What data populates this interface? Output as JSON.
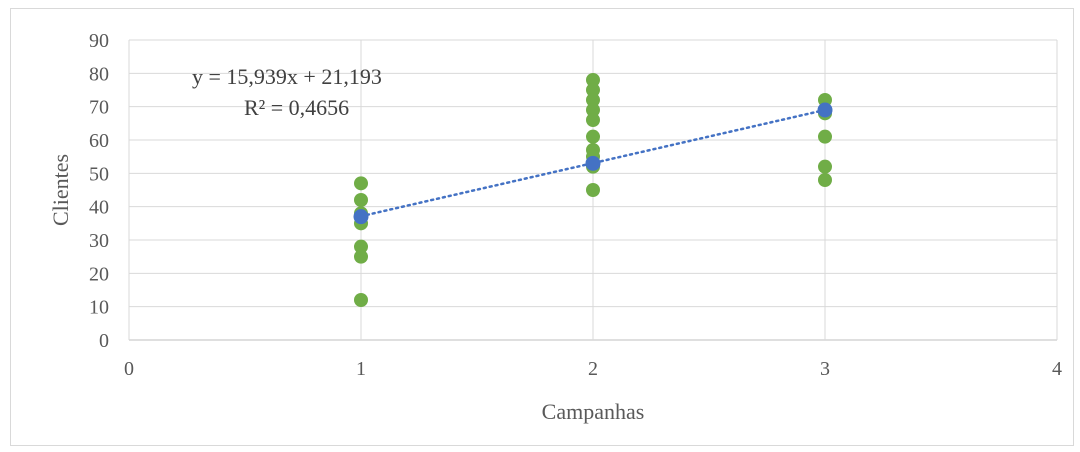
{
  "chart_data": {
    "type": "scatter",
    "xlabel": "Campanhas",
    "ylabel": "Clientes",
    "xlim": [
      0,
      4
    ],
    "ylim": [
      0,
      90
    ],
    "x_ticks": [
      "0",
      "1",
      "2",
      "3",
      "4"
    ],
    "y_ticks": [
      "0",
      "10",
      "20",
      "30",
      "40",
      "50",
      "60",
      "70",
      "80",
      "90"
    ],
    "grid": true,
    "series": [
      {
        "color": "#70ad47",
        "points": [
          [
            1,
            47
          ],
          [
            1,
            42
          ],
          [
            1,
            38
          ],
          [
            1,
            35
          ],
          [
            1,
            28
          ],
          [
            1,
            25
          ],
          [
            1,
            12
          ],
          [
            2,
            78
          ],
          [
            2,
            75
          ],
          [
            2,
            72
          ],
          [
            2,
            69
          ],
          [
            2,
            66
          ],
          [
            2,
            61
          ],
          [
            2,
            57
          ],
          [
            2,
            55
          ],
          [
            2,
            52
          ],
          [
            2,
            45
          ],
          [
            3,
            72
          ],
          [
            3,
            68
          ],
          [
            3,
            61
          ],
          [
            3,
            52
          ],
          [
            3,
            48
          ]
        ]
      },
      {
        "color": "#4472c4",
        "points": [
          [
            1,
            37
          ],
          [
            2,
            53
          ],
          [
            3,
            69
          ]
        ]
      }
    ],
    "trendline": {
      "color": "#4472c4",
      "slope": 15.939,
      "intercept": 21.193,
      "x_range": [
        1,
        3
      ],
      "equation": "y = 15,939x + 21,193",
      "r_squared": "R² = 0,4656"
    }
  }
}
